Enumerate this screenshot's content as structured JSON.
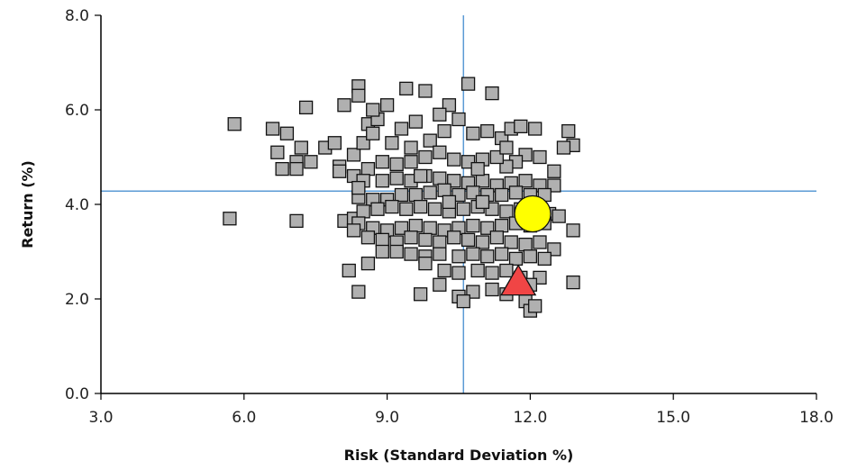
{
  "chart_data": {
    "type": "scatter",
    "title": "",
    "xlabel": "Risk (Standard Deviation %)",
    "ylabel": "Return (%)",
    "xlim": [
      3.0,
      18.0
    ],
    "ylim": [
      0.0,
      8.0
    ],
    "x_ticks": [
      {
        "value": 3,
        "label": "3.0"
      },
      {
        "value": 6,
        "label": "6.0"
      },
      {
        "value": 9,
        "label": "9.0"
      },
      {
        "value": 12,
        "label": "12.0"
      },
      {
        "value": 15,
        "label": "15.0"
      },
      {
        "value": 18,
        "label": "18.0"
      }
    ],
    "y_ticks": [
      {
        "value": 0,
        "label": "0.0"
      },
      {
        "value": 2,
        "label": "2.0"
      },
      {
        "value": 4,
        "label": "4.0"
      },
      {
        "value": 6,
        "label": "6.0"
      },
      {
        "value": 8,
        "label": "8.0"
      }
    ],
    "grid": false,
    "reference_lines": {
      "x": 10.6,
      "y": 4.28,
      "color": "#5b9bd5"
    },
    "series": [
      {
        "marker": "square",
        "color": "#b0b0b0",
        "points": [
          [
            5.8,
            5.7
          ],
          [
            6.6,
            5.6
          ],
          [
            6.9,
            5.5
          ],
          [
            7.3,
            6.05
          ],
          [
            8.4,
            6.5
          ],
          [
            8.4,
            6.3
          ],
          [
            8.1,
            6.1
          ],
          [
            8.6,
            5.7
          ],
          [
            9.0,
            6.1
          ],
          [
            9.4,
            6.45
          ],
          [
            9.8,
            6.4
          ],
          [
            10.7,
            6.55
          ],
          [
            11.2,
            6.35
          ],
          [
            10.3,
            6.1
          ],
          [
            10.1,
            5.9
          ],
          [
            8.8,
            5.8
          ],
          [
            9.3,
            5.6
          ],
          [
            9.6,
            5.75
          ],
          [
            7.2,
            5.2
          ],
          [
            7.7,
            5.2
          ],
          [
            7.9,
            5.3
          ],
          [
            6.7,
            5.1
          ],
          [
            6.8,
            4.75
          ],
          [
            7.1,
            4.9
          ],
          [
            7.4,
            4.9
          ],
          [
            8.0,
            4.8
          ],
          [
            8.3,
            5.05
          ],
          [
            8.5,
            5.3
          ],
          [
            8.7,
            5.5
          ],
          [
            9.1,
            5.3
          ],
          [
            9.5,
            5.2
          ],
          [
            9.9,
            5.35
          ],
          [
            10.2,
            5.55
          ],
          [
            10.5,
            5.8
          ],
          [
            10.8,
            5.5
          ],
          [
            11.1,
            5.55
          ],
          [
            11.4,
            5.4
          ],
          [
            11.6,
            5.6
          ],
          [
            11.8,
            5.65
          ],
          [
            12.1,
            5.6
          ],
          [
            12.8,
            5.55
          ],
          [
            12.9,
            5.25
          ],
          [
            12.7,
            5.2
          ],
          [
            12.2,
            5.0
          ],
          [
            11.9,
            5.05
          ],
          [
            11.7,
            4.9
          ],
          [
            11.5,
            4.8
          ],
          [
            11.3,
            5.0
          ],
          [
            11.0,
            4.95
          ],
          [
            10.7,
            4.9
          ],
          [
            10.4,
            4.95
          ],
          [
            10.1,
            5.1
          ],
          [
            9.8,
            5.0
          ],
          [
            9.5,
            4.9
          ],
          [
            9.2,
            4.85
          ],
          [
            8.9,
            4.9
          ],
          [
            8.6,
            4.75
          ],
          [
            8.3,
            4.6
          ],
          [
            8.0,
            4.7
          ],
          [
            7.1,
            4.75
          ],
          [
            8.5,
            4.5
          ],
          [
            8.9,
            4.5
          ],
          [
            9.2,
            4.55
          ],
          [
            9.5,
            4.5
          ],
          [
            9.8,
            4.6
          ],
          [
            10.1,
            4.55
          ],
          [
            10.4,
            4.5
          ],
          [
            10.7,
            4.45
          ],
          [
            11.0,
            4.5
          ],
          [
            11.3,
            4.4
          ],
          [
            11.6,
            4.45
          ],
          [
            11.9,
            4.5
          ],
          [
            12.2,
            4.4
          ],
          [
            12.5,
            4.4
          ],
          [
            12.5,
            4.7
          ],
          [
            12.3,
            4.2
          ],
          [
            12.0,
            4.2
          ],
          [
            11.7,
            4.25
          ],
          [
            11.4,
            4.2
          ],
          [
            11.1,
            4.2
          ],
          [
            10.8,
            4.25
          ],
          [
            10.5,
            4.2
          ],
          [
            10.2,
            4.3
          ],
          [
            9.9,
            4.25
          ],
          [
            9.6,
            4.2
          ],
          [
            9.3,
            4.2
          ],
          [
            9.0,
            4.1
          ],
          [
            8.7,
            4.1
          ],
          [
            8.4,
            4.15
          ],
          [
            8.4,
            4.35
          ],
          [
            5.7,
            3.7
          ],
          [
            7.1,
            3.65
          ],
          [
            8.1,
            3.65
          ],
          [
            8.3,
            3.7
          ],
          [
            8.5,
            3.85
          ],
          [
            8.8,
            3.9
          ],
          [
            9.1,
            3.95
          ],
          [
            9.4,
            3.9
          ],
          [
            9.7,
            3.95
          ],
          [
            10.0,
            3.9
          ],
          [
            10.3,
            3.85
          ],
          [
            10.6,
            3.9
          ],
          [
            10.9,
            3.95
          ],
          [
            11.2,
            3.9
          ],
          [
            11.5,
            3.85
          ],
          [
            11.8,
            3.9
          ],
          [
            12.1,
            3.95
          ],
          [
            12.4,
            3.8
          ],
          [
            12.6,
            3.75
          ],
          [
            12.3,
            3.6
          ],
          [
            12.0,
            3.55
          ],
          [
            11.7,
            3.6
          ],
          [
            11.4,
            3.55
          ],
          [
            11.1,
            3.5
          ],
          [
            10.8,
            3.55
          ],
          [
            10.5,
            3.5
          ],
          [
            10.2,
            3.45
          ],
          [
            9.9,
            3.5
          ],
          [
            9.6,
            3.55
          ],
          [
            9.3,
            3.5
          ],
          [
            9.0,
            3.45
          ],
          [
            8.7,
            3.5
          ],
          [
            8.4,
            3.6
          ],
          [
            8.3,
            3.45
          ],
          [
            8.6,
            3.3
          ],
          [
            8.9,
            3.25
          ],
          [
            9.2,
            3.2
          ],
          [
            9.5,
            3.3
          ],
          [
            9.8,
            3.25
          ],
          [
            10.1,
            3.2
          ],
          [
            10.4,
            3.3
          ],
          [
            10.7,
            3.25
          ],
          [
            11.0,
            3.2
          ],
          [
            11.3,
            3.3
          ],
          [
            11.6,
            3.2
          ],
          [
            11.9,
            3.15
          ],
          [
            12.2,
            3.2
          ],
          [
            12.5,
            3.05
          ],
          [
            12.9,
            3.45
          ],
          [
            12.3,
            2.85
          ],
          [
            12.0,
            2.9
          ],
          [
            11.7,
            2.85
          ],
          [
            11.4,
            2.95
          ],
          [
            11.1,
            2.9
          ],
          [
            10.8,
            2.95
          ],
          [
            10.5,
            2.9
          ],
          [
            10.1,
            2.95
          ],
          [
            9.8,
            2.9
          ],
          [
            9.5,
            2.95
          ],
          [
            9.2,
            3.0
          ],
          [
            8.9,
            3.0
          ],
          [
            8.6,
            2.75
          ],
          [
            8.2,
            2.6
          ],
          [
            8.4,
            2.15
          ],
          [
            9.8,
            2.75
          ],
          [
            10.2,
            2.6
          ],
          [
            10.5,
            2.55
          ],
          [
            10.9,
            2.6
          ],
          [
            11.2,
            2.55
          ],
          [
            11.5,
            2.6
          ],
          [
            11.8,
            2.45
          ],
          [
            12.2,
            2.45
          ],
          [
            12.0,
            2.3
          ],
          [
            12.9,
            2.35
          ],
          [
            11.2,
            2.2
          ],
          [
            10.8,
            2.15
          ],
          [
            10.5,
            2.05
          ],
          [
            10.1,
            2.3
          ],
          [
            9.7,
            2.1
          ],
          [
            11.5,
            2.1
          ],
          [
            11.9,
            1.95
          ],
          [
            12.0,
            1.75
          ],
          [
            12.1,
            1.85
          ],
          [
            10.6,
            1.95
          ],
          [
            11.0,
            4.05
          ],
          [
            10.3,
            4.05
          ],
          [
            9.7,
            4.6
          ],
          [
            10.9,
            4.75
          ],
          [
            11.5,
            5.2
          ],
          [
            8.7,
            6.0
          ]
        ]
      },
      {
        "marker": "circle",
        "color": "#ffff00",
        "points": [
          [
            12.05,
            3.8
          ]
        ]
      },
      {
        "marker": "triangle",
        "color": "#f04545",
        "points": [
          [
            11.75,
            2.35
          ]
        ]
      }
    ]
  }
}
